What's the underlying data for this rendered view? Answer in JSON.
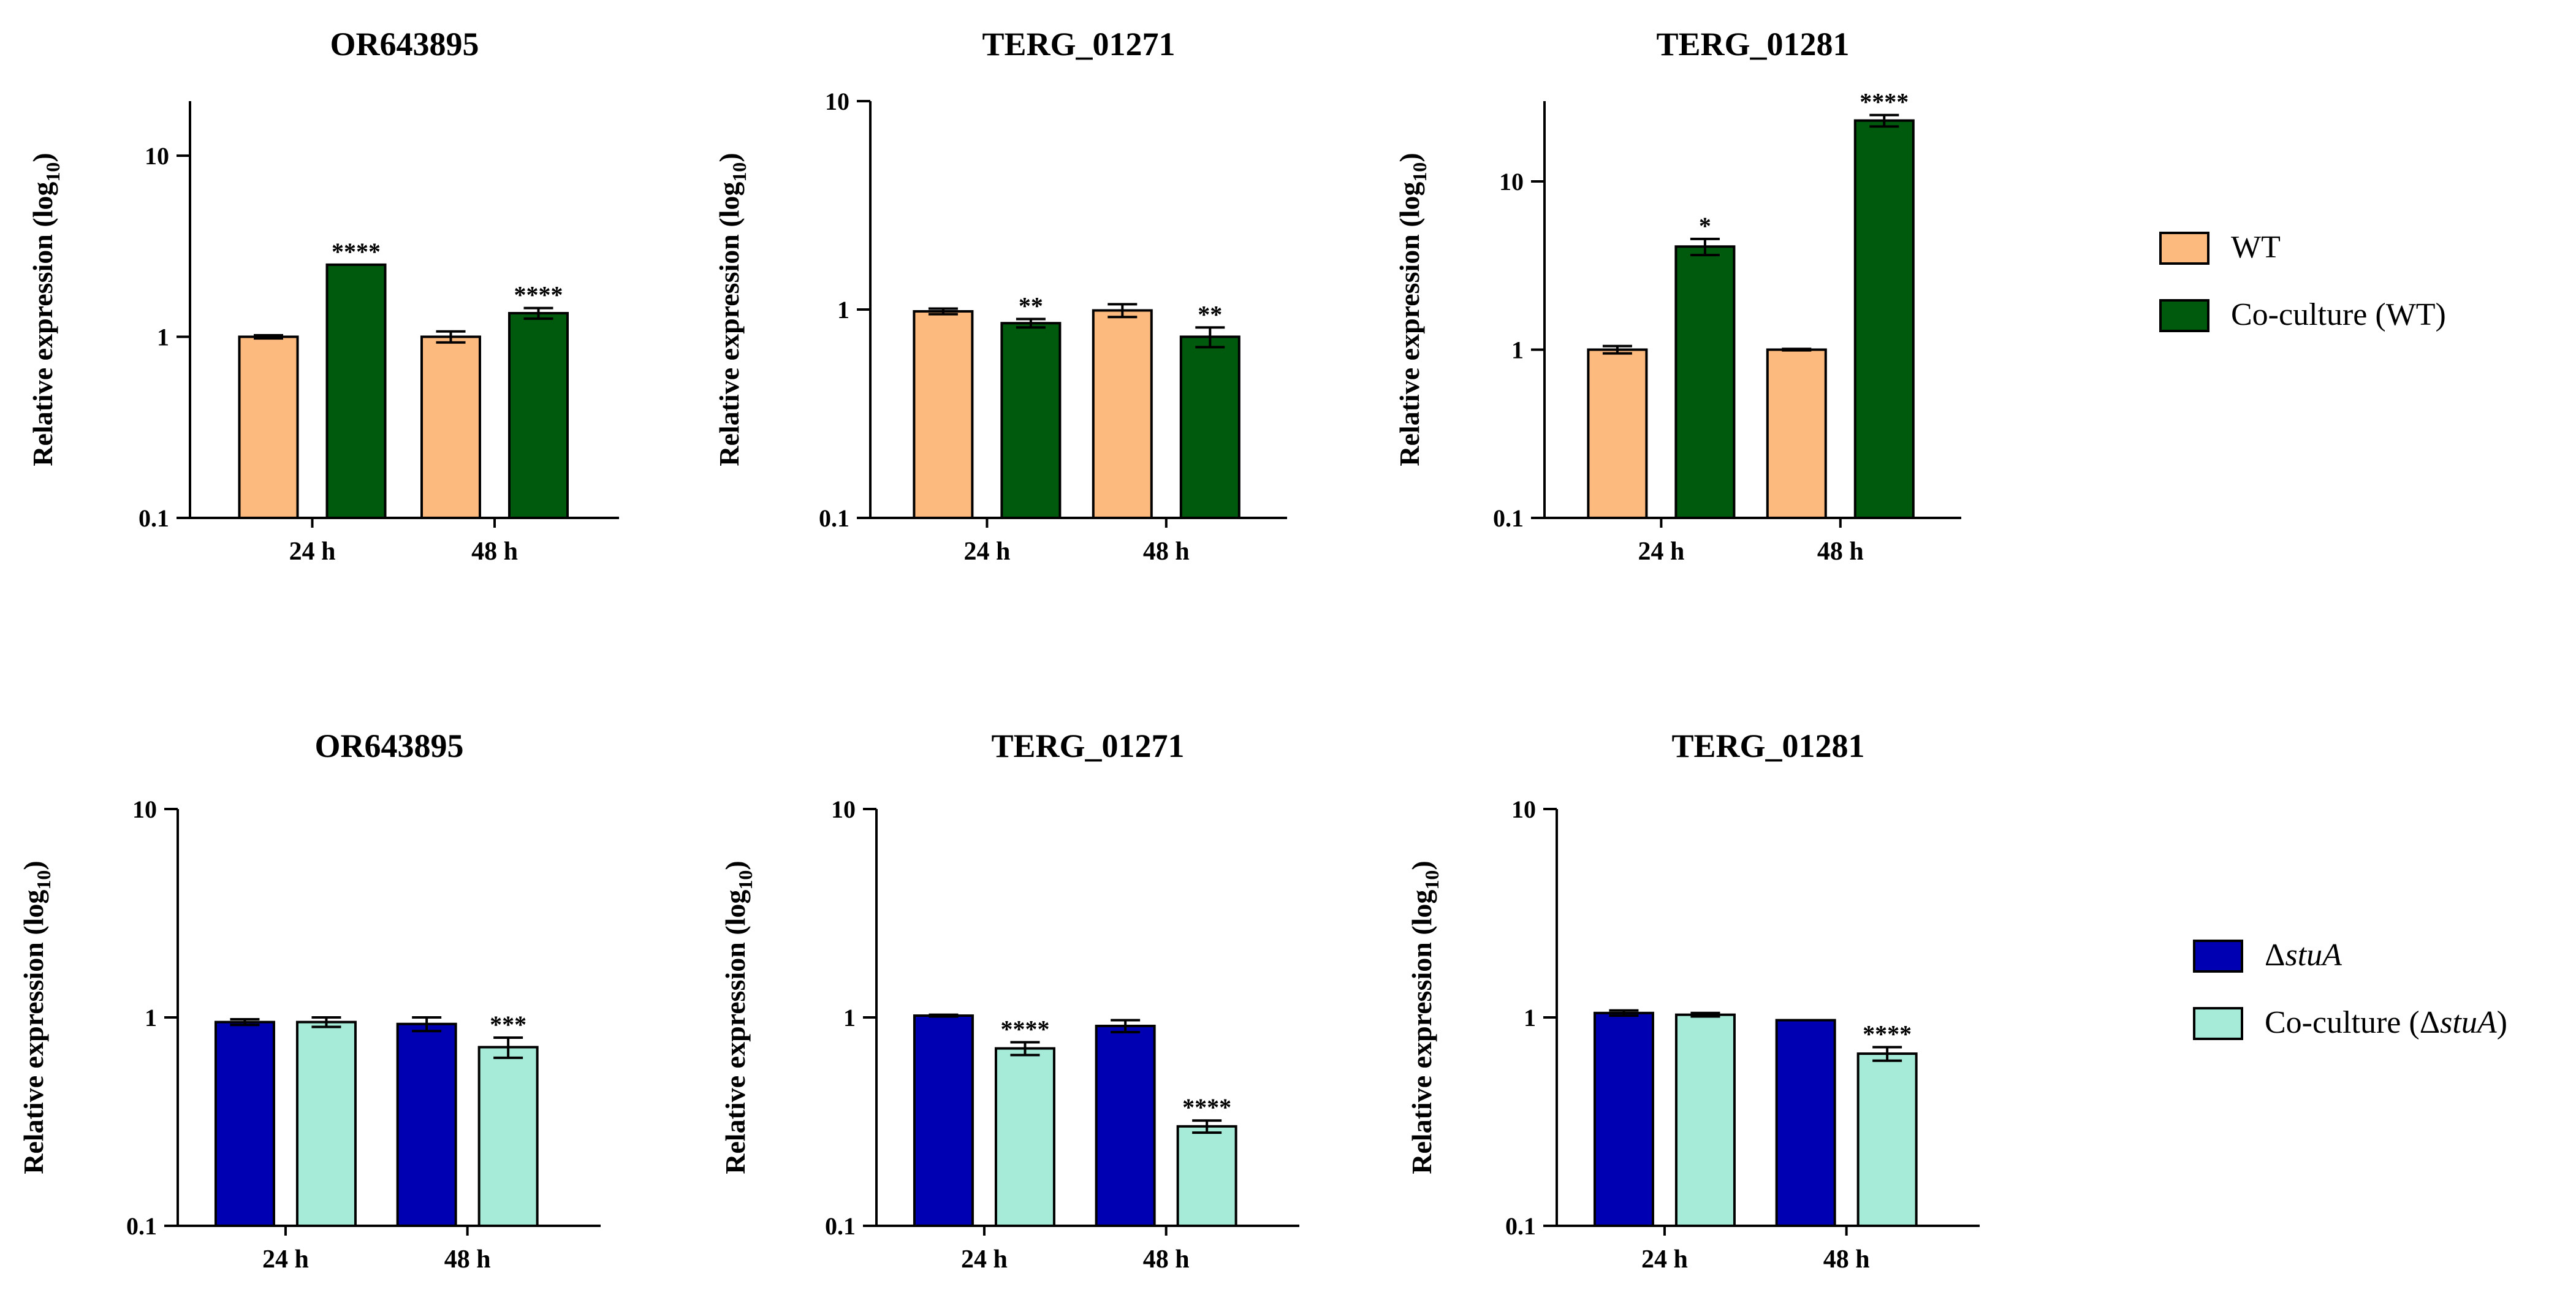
{
  "legends": [
    {
      "entries": [
        {
          "label": "WT",
          "color": "#FDBA7E"
        },
        {
          "label": "Co-culture (WT)",
          "color": "#005A0E"
        }
      ]
    },
    {
      "entries": [
        {
          "label_prefix": "Δ",
          "label_italic": "stuA",
          "label_suffix": "",
          "color": "#0000B3"
        },
        {
          "label_prefix": "Co-culture (Δ",
          "label_italic": "stuA",
          "label_suffix": ")",
          "color": "#A6EAD8"
        }
      ]
    }
  ],
  "chart_data": [
    {
      "type": "bar",
      "title": "OR643895",
      "ylabel": "Relative expression (log10)",
      "yscale": "log",
      "ylim": [
        0.1,
        20
      ],
      "yticks": [
        "0.1",
        "1",
        "10"
      ],
      "categories": [
        "24 h",
        "48 h"
      ],
      "series": [
        {
          "name": "WT",
          "color": "#FDBA7E",
          "values": [
            1.0,
            1.0
          ],
          "errors": [
            0.02,
            0.07
          ],
          "sig": [
            "",
            ""
          ]
        },
        {
          "name": "Co-culture (WT)",
          "color": "#005A0E",
          "values": [
            2.5,
            1.35
          ],
          "errors": [
            0.0,
            0.09
          ],
          "sig": [
            "****",
            "****"
          ]
        }
      ]
    },
    {
      "type": "bar",
      "title": "TERG_01271",
      "ylabel": "Relative expression (log10)",
      "yscale": "log",
      "ylim": [
        0.1,
        10
      ],
      "yticks": [
        "0.1",
        "1",
        "10"
      ],
      "categories": [
        "24 h",
        "48 h"
      ],
      "series": [
        {
          "name": "WT",
          "color": "#FDBA7E",
          "values": [
            0.98,
            0.99
          ],
          "errors": [
            0.03,
            0.07
          ],
          "sig": [
            "",
            ""
          ]
        },
        {
          "name": "Co-culture (WT)",
          "color": "#005A0E",
          "values": [
            0.86,
            0.74
          ],
          "errors": [
            0.04,
            0.08
          ],
          "sig": [
            "**",
            "**"
          ]
        }
      ]
    },
    {
      "type": "bar",
      "title": "TERG_01281",
      "ylabel": "Relative expression (log10)",
      "yscale": "log",
      "ylim": [
        0.1,
        30
      ],
      "yticks": [
        "0.1",
        "1",
        "10"
      ],
      "categories": [
        "24 h",
        "48 h"
      ],
      "series": [
        {
          "name": "WT",
          "color": "#FDBA7E",
          "values": [
            1.0,
            1.0
          ],
          "errors": [
            0.05,
            0.01
          ],
          "sig": [
            "",
            ""
          ]
        },
        {
          "name": "Co-culture (WT)",
          "color": "#005A0E",
          "values": [
            4.1,
            23.0
          ],
          "errors": [
            0.45,
            1.8
          ],
          "sig": [
            "*",
            "****"
          ]
        }
      ]
    },
    {
      "type": "bar",
      "title": "OR643895",
      "ylabel": "Relative expression (log10)",
      "yscale": "log",
      "ylim": [
        0.1,
        10
      ],
      "yticks": [
        "0.1",
        "1",
        "10"
      ],
      "categories": [
        "24 h",
        "48 h"
      ],
      "series": [
        {
          "name": "ΔstuA",
          "color": "#0000B3",
          "values": [
            0.95,
            0.93
          ],
          "errors": [
            0.03,
            0.07
          ],
          "sig": [
            "",
            ""
          ]
        },
        {
          "name": "Co-culture (ΔstuA)",
          "color": "#A6EAD8",
          "values": [
            0.95,
            0.72
          ],
          "errors": [
            0.05,
            0.08
          ],
          "sig": [
            "",
            "***"
          ]
        }
      ]
    },
    {
      "type": "bar",
      "title": "TERG_01271",
      "ylabel": "Relative expression (log10)",
      "yscale": "log",
      "ylim": [
        0.1,
        10
      ],
      "yticks": [
        "0.1",
        "1",
        "10"
      ],
      "categories": [
        "24 h",
        "48 h"
      ],
      "series": [
        {
          "name": "ΔstuA",
          "color": "#0000B3",
          "values": [
            1.02,
            0.91
          ],
          "errors": [
            0.01,
            0.06
          ],
          "sig": [
            "",
            ""
          ]
        },
        {
          "name": "Co-culture (ΔstuA)",
          "color": "#A6EAD8",
          "values": [
            0.71,
            0.3
          ],
          "errors": [
            0.05,
            0.02
          ],
          "sig": [
            "****",
            "****"
          ]
        }
      ]
    },
    {
      "type": "bar",
      "title": "TERG_01281",
      "ylabel": "Relative expression (log10)",
      "yscale": "log",
      "ylim": [
        0.1,
        10
      ],
      "yticks": [
        "0.1",
        "1",
        "10"
      ],
      "categories": [
        "24 h",
        "48 h"
      ],
      "series": [
        {
          "name": "ΔstuA",
          "color": "#0000B3",
          "values": [
            1.05,
            0.97
          ],
          "errors": [
            0.03,
            0.0
          ],
          "sig": [
            "",
            ""
          ]
        },
        {
          "name": "Co-culture (ΔstuA)",
          "color": "#A6EAD8",
          "values": [
            1.03,
            0.67
          ],
          "errors": [
            0.02,
            0.05
          ],
          "sig": [
            "",
            "****"
          ]
        }
      ]
    }
  ]
}
